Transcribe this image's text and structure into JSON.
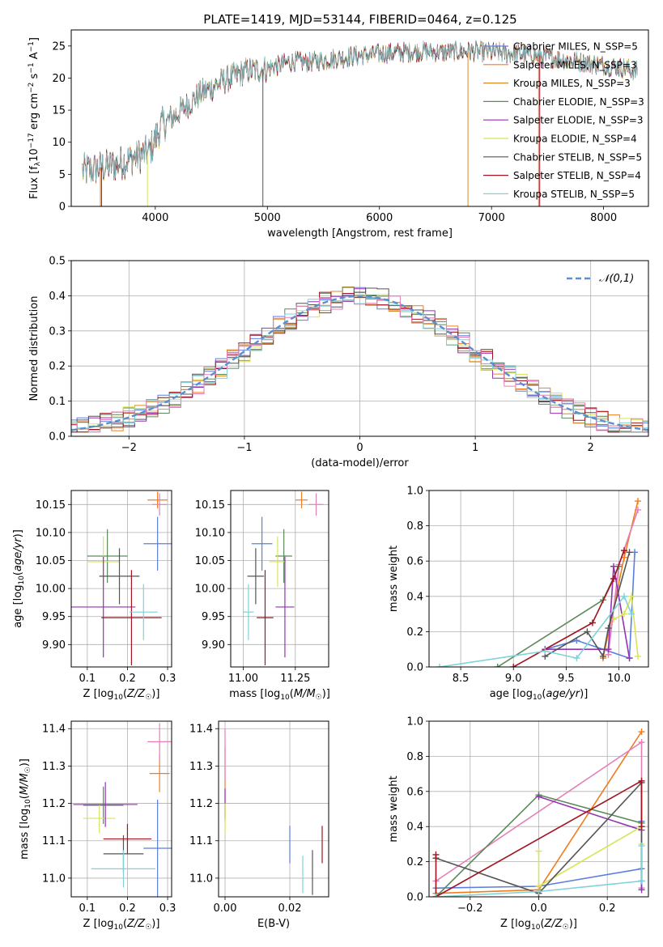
{
  "figure": {
    "title": "PLATE=1419, MJD=53144, FIBERID=0464, z=0.125"
  },
  "colors": [
    "#5b7fe0",
    "#f07d1e",
    "#d98a28",
    "#5a8a5a",
    "#9632b4",
    "#d8e458",
    "#555555",
    "#a01520",
    "#7fd2d8",
    "#e57eb8"
  ],
  "chart_data": [
    {
      "id": "spectrum",
      "type": "line",
      "xlabel": "wavelength [Angstrom, rest frame]",
      "ylabel": "Flux [f_λ 10^-17 erg cm^-2 s^-1 A^-1]",
      "xlim": [
        3250,
        8400
      ],
      "ylim": [
        0,
        27.5
      ],
      "xticks": [
        4000,
        5000,
        6000,
        7000,
        8000
      ],
      "yticks": [
        0,
        5,
        10,
        15,
        20,
        25
      ],
      "grid": false,
      "legend_position": "top-right",
      "continuum_knots": [
        [
          3350,
          5.5
        ],
        [
          3500,
          6.0
        ],
        [
          3650,
          6.5
        ],
        [
          3800,
          7.5
        ],
        [
          3950,
          8.5
        ],
        [
          4050,
          12.5
        ],
        [
          4200,
          14.5
        ],
        [
          4400,
          17.5
        ],
        [
          4600,
          19.5
        ],
        [
          4800,
          21.0
        ],
        [
          5000,
          21.5
        ],
        [
          5200,
          22.5
        ],
        [
          5400,
          22.5
        ],
        [
          5600,
          23.0
        ],
        [
          5800,
          23.5
        ],
        [
          6000,
          23.8
        ],
        [
          6200,
          24.0
        ],
        [
          6400,
          24.2
        ],
        [
          6600,
          24.0
        ],
        [
          6800,
          24.2
        ],
        [
          7000,
          24.0
        ],
        [
          7200,
          23.8
        ],
        [
          7400,
          23.5
        ],
        [
          7600,
          23.0
        ],
        [
          7800,
          22.5
        ],
        [
          8000,
          22.0
        ],
        [
          8200,
          21.5
        ],
        [
          8300,
          21.0
        ]
      ],
      "series": [
        {
          "name": "Chabrier MILES, N_SSP=5",
          "color": "#5b7fe0"
        },
        {
          "name": "Salpeter MILES, N_SSP=3",
          "color": "#f07d1e"
        },
        {
          "name": "Kroupa MILES, N_SSP=3",
          "color": "#d98a28"
        },
        {
          "name": "Chabrier ELODIE, N_SSP=3",
          "color": "#5a8a5a"
        },
        {
          "name": "Salpeter ELODIE, N_SSP=3",
          "color": "#9632b4"
        },
        {
          "name": "Kroupa ELODIE, N_SSP=4",
          "color": "#d8e458"
        },
        {
          "name": "Chabrier STELIB, N_SSP=5",
          "color": "#555555"
        },
        {
          "name": "Salpeter STELIB, N_SSP=4",
          "color": "#a01520"
        },
        {
          "name": "Kroupa STELIB, N_SSP=5",
          "color": "#7fd2d8"
        }
      ]
    },
    {
      "id": "residual-histogram",
      "type": "line",
      "xlabel": "(data-model)/error",
      "ylabel": "Normed distribution",
      "xlim": [
        -2.5,
        2.5
      ],
      "ylim": [
        0,
        0.5
      ],
      "xticks": [
        -2,
        -1,
        0,
        1,
        2
      ],
      "yticks": [
        0.0,
        0.1,
        0.2,
        0.3,
        0.4,
        0.5
      ],
      "grid": true,
      "bin_width": 0.1,
      "reference_curve": {
        "name": "𝒩(0,1)",
        "style": "dashed",
        "color": "#5b8fd0"
      }
    },
    {
      "id": "age-vs-Z",
      "type": "scatter",
      "xlabel": "Z [log10(Z/Z☉)]",
      "ylabel": "age  [log10(age/yr)]",
      "xlim": [
        0.06,
        0.31
      ],
      "ylim": [
        9.86,
        10.175
      ],
      "xticks": [
        0.1,
        0.2,
        0.3
      ],
      "yticks": [
        9.9,
        9.95,
        10.0,
        10.05,
        10.1,
        10.15
      ],
      "grid": true,
      "points": [
        {
          "x": 0.275,
          "y": 10.08,
          "xerr": 0.035,
          "yerr": 0.048,
          "color": "#5b7fe0"
        },
        {
          "x": 0.275,
          "y": 10.158,
          "xerr": 0.025,
          "yerr": 0.015,
          "color": "#f07d1e"
        },
        {
          "x": 0.28,
          "y": 10.15,
          "xerr": 0.018,
          "yerr": 0.02,
          "color": "#e57eb8"
        },
        {
          "x": 0.15,
          "y": 10.058,
          "xerr": 0.05,
          "yerr": 0.048,
          "color": "#5a8a5a"
        },
        {
          "x": 0.14,
          "y": 10.048,
          "xerr": 0.04,
          "yerr": 0.045,
          "color": "#d8e458"
        },
        {
          "x": 0.18,
          "y": 10.022,
          "xerr": 0.05,
          "yerr": 0.05,
          "color": "#555555"
        },
        {
          "x": 0.14,
          "y": 9.967,
          "xerr": 0.08,
          "yerr": 0.09,
          "color": "#9632b4"
        },
        {
          "x": 0.21,
          "y": 9.948,
          "xerr": 0.075,
          "yerr": 0.085,
          "color": "#a01520"
        },
        {
          "x": 0.24,
          "y": 9.958,
          "xerr": 0.035,
          "yerr": 0.05,
          "color": "#7fd2d8"
        }
      ]
    },
    {
      "id": "age-vs-mass",
      "type": "scatter",
      "xlabel": "mass [log10(M/M☉)]",
      "ylabel": "",
      "xlim": [
        10.94,
        11.41
      ],
      "ylim": [
        9.86,
        10.175
      ],
      "xticks": [
        11.0,
        11.25
      ],
      "yticks": [
        9.9,
        9.95,
        10.0,
        10.05,
        10.1,
        10.15
      ],
      "grid": true,
      "points": [
        {
          "x": 11.09,
          "y": 10.08,
          "xerr": 0.05,
          "yerr": 0.048,
          "color": "#5b7fe0"
        },
        {
          "x": 11.28,
          "y": 10.158,
          "xerr": 0.03,
          "yerr": 0.015,
          "color": "#f07d1e"
        },
        {
          "x": 11.35,
          "y": 10.15,
          "xerr": 0.035,
          "yerr": 0.02,
          "color": "#e57eb8"
        },
        {
          "x": 11.195,
          "y": 10.058,
          "xerr": 0.04,
          "yerr": 0.048,
          "color": "#5a8a5a"
        },
        {
          "x": 11.165,
          "y": 10.048,
          "xerr": 0.04,
          "yerr": 0.045,
          "color": "#d8e458"
        },
        {
          "x": 11.06,
          "y": 10.022,
          "xerr": 0.04,
          "yerr": 0.05,
          "color": "#555555"
        },
        {
          "x": 11.2,
          "y": 9.967,
          "xerr": 0.045,
          "yerr": 0.09,
          "color": "#9632b4"
        },
        {
          "x": 11.105,
          "y": 9.948,
          "xerr": 0.04,
          "yerr": 0.085,
          "color": "#a01520"
        },
        {
          "x": 11.025,
          "y": 9.958,
          "xerr": 0.025,
          "yerr": 0.05,
          "color": "#7fd2d8"
        }
      ]
    },
    {
      "id": "mass-weight-vs-age",
      "type": "line",
      "xlabel": "age  [log10(age/yr)]",
      "ylabel": "mass weight",
      "xlim": [
        8.2,
        10.28
      ],
      "ylim": [
        0,
        1.0
      ],
      "xticks": [
        8.5,
        9.0,
        9.5,
        10.0
      ],
      "yticks": [
        0.0,
        0.2,
        0.4,
        0.6,
        0.8,
        1.0
      ],
      "grid": true,
      "series": [
        {
          "color": "#5b7fe0",
          "x": [
            9.3,
            9.6,
            10.1,
            10.15
          ],
          "y": [
            0.1,
            0.15,
            0.05,
            0.65
          ]
        },
        {
          "color": "#f07d1e",
          "x": [
            9.85,
            10.05,
            10.18
          ],
          "y": [
            0.05,
            0.62,
            0.94
          ]
        },
        {
          "color": "#e57eb8",
          "x": [
            9.9,
            10.0,
            10.18
          ],
          "y": [
            0.07,
            0.58,
            0.89
          ]
        },
        {
          "color": "#5a8a5a",
          "x": [
            8.85,
            9.85,
            10.0
          ],
          "y": [
            0.0,
            0.38,
            0.57
          ]
        },
        {
          "color": "#9632b4",
          "x": [
            9.3,
            9.9,
            9.95,
            10.1
          ],
          "y": [
            0.1,
            0.1,
            0.57,
            0.05
          ]
        },
        {
          "color": "#d8e458",
          "x": [
            9.95,
            10.05,
            10.12,
            10.18
          ],
          "y": [
            0.27,
            0.3,
            0.4,
            0.06
          ]
        },
        {
          "color": "#555555",
          "x": [
            9.3,
            9.7,
            9.85,
            9.9,
            10.1
          ],
          "y": [
            0.06,
            0.2,
            0.06,
            0.22,
            0.65
          ]
        },
        {
          "color": "#a01520",
          "x": [
            9.0,
            9.75,
            9.95,
            10.05
          ],
          "y": [
            0.0,
            0.25,
            0.5,
            0.66
          ]
        },
        {
          "color": "#7fd2d8",
          "x": [
            8.3,
            9.3,
            9.6,
            10.05,
            10.12
          ],
          "y": [
            0.0,
            0.09,
            0.05,
            0.4,
            0.3
          ]
        }
      ]
    },
    {
      "id": "mass-vs-Z",
      "type": "scatter",
      "xlabel": "Z [log10(Z/Z☉)]",
      "ylabel": "mass [log10(M/M☉)]",
      "xlim": [
        0.06,
        0.31
      ],
      "ylim": [
        10.95,
        11.42
      ],
      "xticks": [
        0.1,
        0.2,
        0.3
      ],
      "yticks": [
        11.0,
        11.1,
        11.2,
        11.3,
        11.4
      ],
      "grid": true,
      "points": [
        {
          "x": 0.275,
          "y": 11.08,
          "xerr": 0.035,
          "yerr": 0.13,
          "color": "#5b7fe0"
        },
        {
          "x": 0.28,
          "y": 11.28,
          "xerr": 0.025,
          "yerr": 0.05,
          "color": "#f07d1e"
        },
        {
          "x": 0.28,
          "y": 11.365,
          "xerr": 0.03,
          "yerr": 0.05,
          "color": "#e57eb8"
        },
        {
          "x": 0.14,
          "y": 11.195,
          "xerr": 0.05,
          "yerr": 0.05,
          "color": "#5a8a5a"
        },
        {
          "x": 0.13,
          "y": 11.16,
          "xerr": 0.04,
          "yerr": 0.04,
          "color": "#d8e458"
        },
        {
          "x": 0.19,
          "y": 11.065,
          "xerr": 0.05,
          "yerr": 0.05,
          "color": "#555555"
        },
        {
          "x": 0.145,
          "y": 11.197,
          "xerr": 0.08,
          "yerr": 0.06,
          "color": "#9632b4"
        },
        {
          "x": 0.2,
          "y": 11.105,
          "xerr": 0.06,
          "yerr": 0.04,
          "color": "#a01520"
        },
        {
          "x": 0.19,
          "y": 11.025,
          "xerr": 0.08,
          "yerr": 0.05,
          "color": "#7fd2d8"
        }
      ]
    },
    {
      "id": "mass-vs-EBV",
      "type": "scatter",
      "xlabel": "E(B-V)",
      "ylabel": "",
      "xlim": [
        -0.002,
        0.032
      ],
      "ylim": [
        10.95,
        11.42
      ],
      "xticks": [
        0.0,
        0.02
      ],
      "yticks": [
        11.0,
        11.1,
        11.2,
        11.3,
        11.4
      ],
      "grid": true,
      "points": [
        {
          "x": 0.02,
          "y": 11.09,
          "xerr": 0,
          "yerr": 0.05,
          "color": "#5b7fe0"
        },
        {
          "x": 0.0,
          "y": 11.25,
          "xerr": 0,
          "yerr": 0.1,
          "color": "#f07d1e"
        },
        {
          "x": 0.0,
          "y": 11.33,
          "xerr": 0,
          "yerr": 0.07,
          "color": "#e57eb8"
        },
        {
          "x": 0.0,
          "y": 11.2,
          "xerr": 0,
          "yerr": 0.04,
          "color": "#9632b4"
        },
        {
          "x": 0.0,
          "y": 11.16,
          "xerr": 0,
          "yerr": 0.04,
          "color": "#d8e458"
        },
        {
          "x": 0.027,
          "y": 11.015,
          "xerr": 0,
          "yerr": 0.06,
          "color": "#555555"
        },
        {
          "x": 0.03,
          "y": 11.09,
          "xerr": 0,
          "yerr": 0.05,
          "color": "#a01520"
        },
        {
          "x": 0.024,
          "y": 11.01,
          "xerr": 0,
          "yerr": 0.05,
          "color": "#7fd2d8"
        }
      ]
    },
    {
      "id": "mass-weight-vs-Z",
      "type": "line",
      "xlabel": "Z [log10(Z/Z☉)]",
      "ylabel": "mass weight",
      "xlim": [
        -0.32,
        0.32
      ],
      "ylim": [
        0,
        1.0
      ],
      "xticks": [
        -0.2,
        0.0,
        0.2
      ],
      "yticks": [
        0.0,
        0.2,
        0.4,
        0.6,
        0.8,
        1.0
      ],
      "grid": true,
      "series": [
        {
          "color": "#5b7fe0",
          "x": [
            -0.3,
            0.0,
            0.3,
            0.3
          ],
          "y": [
            0.05,
            0.06,
            0.16,
            0.43
          ]
        },
        {
          "color": "#f07d1e",
          "x": [
            -0.3,
            0.0,
            0.3
          ],
          "y": [
            0.02,
            0.04,
            0.94
          ]
        },
        {
          "color": "#e57eb8",
          "x": [
            -0.3,
            0.3,
            0.3
          ],
          "y": [
            0.09,
            0.88,
            0.05
          ]
        },
        {
          "color": "#5a8a5a",
          "x": [
            -0.3,
            0.0,
            0.3
          ],
          "y": [
            0.0,
            0.58,
            0.42
          ]
        },
        {
          "color": "#9632b4",
          "x": [
            0.0,
            0.3,
            0.3
          ],
          "y": [
            0.57,
            0.38,
            0.04
          ]
        },
        {
          "color": "#d8e458",
          "x": [
            0.0,
            0.0,
            0.3,
            0.3
          ],
          "y": [
            0.26,
            0.06,
            0.4,
            0.3
          ]
        },
        {
          "color": "#555555",
          "x": [
            -0.3,
            0.0,
            0.3,
            0.3
          ],
          "y": [
            0.22,
            0.02,
            0.65,
            0.09
          ]
        },
        {
          "color": "#a01520",
          "x": [
            -0.3,
            -0.3,
            0.3,
            0.3
          ],
          "y": [
            0.24,
            0.0,
            0.66,
            0.4
          ]
        },
        {
          "color": "#7fd2d8",
          "x": [
            -0.3,
            0.0,
            0.3,
            0.3
          ],
          "y": [
            0.0,
            0.03,
            0.09,
            0.29
          ]
        }
      ]
    }
  ]
}
